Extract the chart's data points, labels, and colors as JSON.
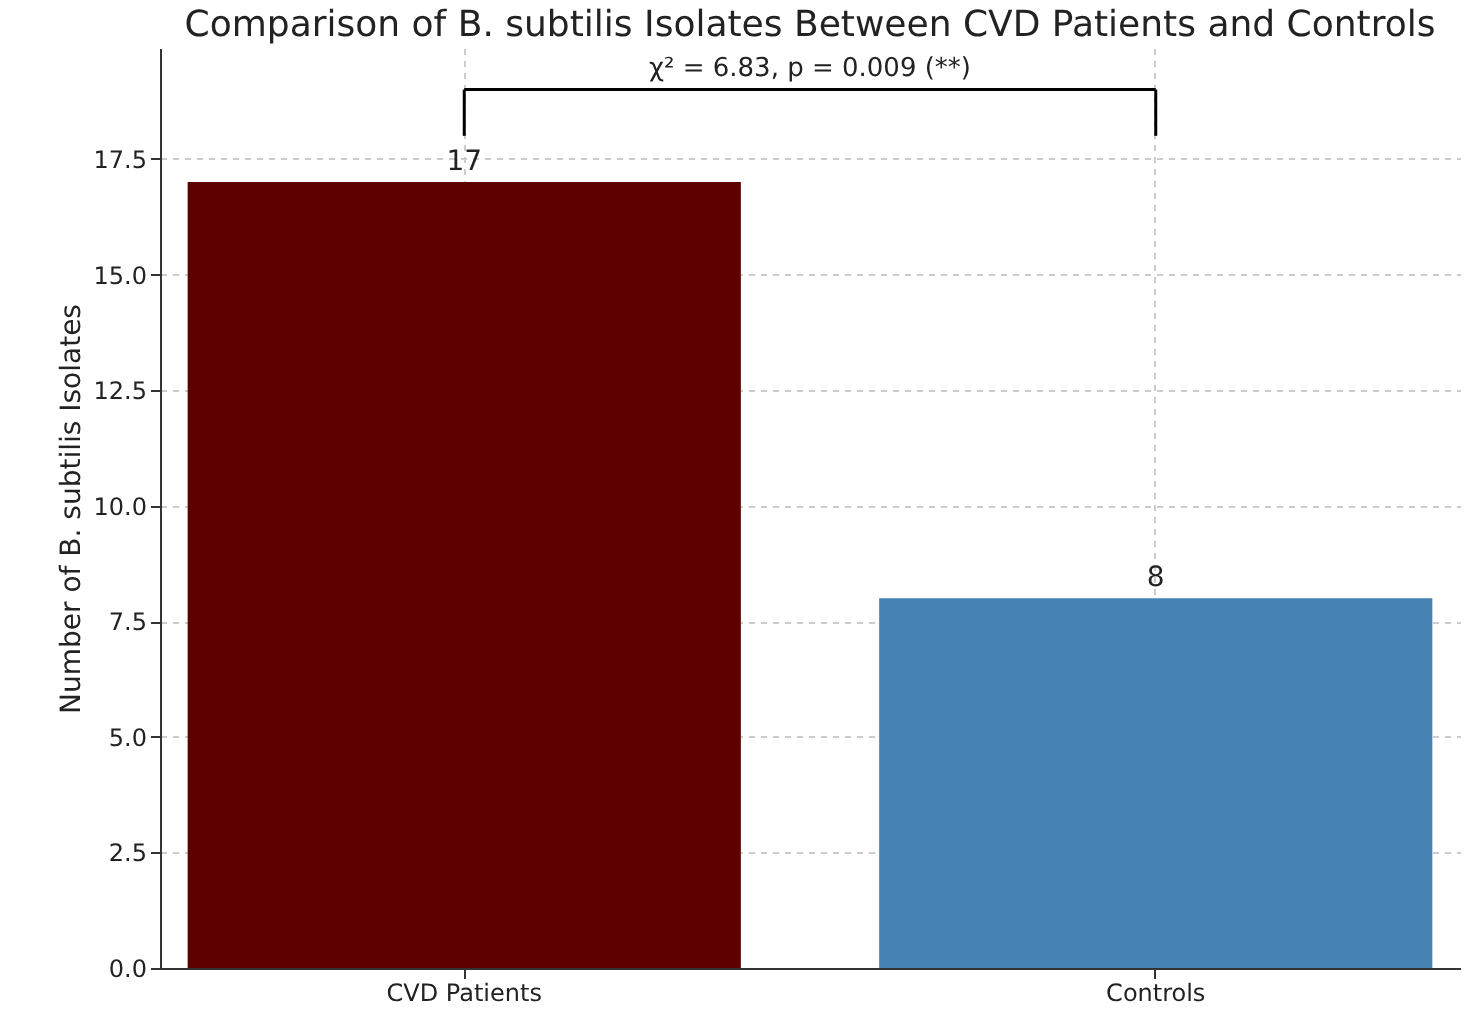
{
  "chart_data": {
    "type": "bar",
    "title": "Comparison of B. subtilis Isolates Between CVD Patients and Controls",
    "ylabel": "Number of B. subtilis Isolates",
    "categories": [
      "CVD Patients",
      "Controls"
    ],
    "values": [
      17,
      8
    ],
    "colors": [
      "#5c0000",
      "#4682b4"
    ],
    "ylim": [
      0,
      19.9
    ],
    "yticks": [
      {
        "value": 0,
        "label": "0.0"
      },
      {
        "value": 2.5,
        "label": "2.5"
      },
      {
        "value": 5,
        "label": "5.0"
      },
      {
        "value": 7.5,
        "label": "7.5"
      },
      {
        "value": 10,
        "label": "10.0"
      },
      {
        "value": 12.5,
        "label": "12.5"
      },
      {
        "value": 15,
        "label": "15.0"
      },
      {
        "value": 17.5,
        "label": "17.5"
      }
    ],
    "grid": true,
    "data_labels": true,
    "annotations": [
      "χ² = 6.83, p = 0.009 (**)"
    ]
  }
}
